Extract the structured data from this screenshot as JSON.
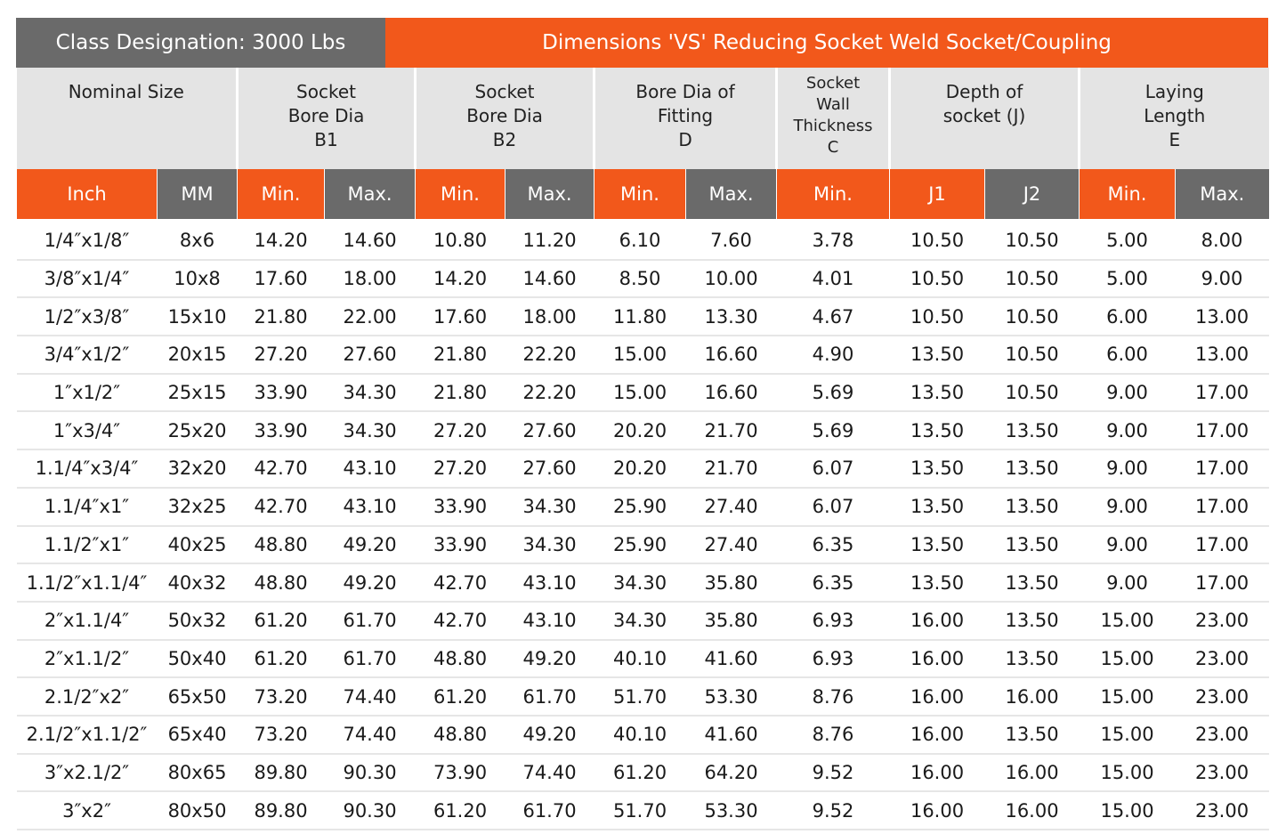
{
  "title": {
    "left": "Class Designation: 3000 Lbs",
    "right": "Dimensions 'VS' Reducing Socket Weld Socket/Coupling"
  },
  "header": {
    "groups": [
      {
        "lines": [
          "Nominal Size"
        ],
        "span": 2
      },
      {
        "lines": [
          "Socket",
          "Bore Dia",
          "B1"
        ],
        "span": 2
      },
      {
        "lines": [
          "Socket",
          "Bore Dia",
          "B2"
        ],
        "span": 2
      },
      {
        "lines": [
          "Bore Dia of",
          "Fitting",
          "D"
        ],
        "span": 2
      },
      {
        "lines": [
          "Socket",
          "Wall",
          "Thickness",
          "C"
        ],
        "span": 1
      },
      {
        "lines": [
          "Depth of",
          "socket (J)"
        ],
        "span": 2
      },
      {
        "lines": [
          "Laying",
          "Length",
          "E"
        ],
        "span": 2
      }
    ],
    "subheaders": [
      "Inch",
      "MM",
      "Min.",
      "Max.",
      "Min.",
      "Max.",
      "Min.",
      "Max.",
      "Min.",
      "J1",
      "J2",
      "Min.",
      "Max."
    ]
  },
  "table": {
    "rows": [
      [
        "1/4″x1/8″",
        "8x6",
        "14.20",
        "14.60",
        "10.80",
        "11.20",
        "6.10",
        "7.60",
        "3.78",
        "10.50",
        "10.50",
        "5.00",
        "8.00"
      ],
      [
        "3/8″x1/4″",
        "10x8",
        "17.60",
        "18.00",
        "14.20",
        "14.60",
        "8.50",
        "10.00",
        "4.01",
        "10.50",
        "10.50",
        "5.00",
        "9.00"
      ],
      [
        "1/2″x3/8″",
        "15x10",
        "21.80",
        "22.00",
        "17.60",
        "18.00",
        "11.80",
        "13.30",
        "4.67",
        "10.50",
        "10.50",
        "6.00",
        "13.00"
      ],
      [
        "3/4″x1/2″",
        "20x15",
        "27.20",
        "27.60",
        "21.80",
        "22.20",
        "15.00",
        "16.60",
        "4.90",
        "13.50",
        "10.50",
        "6.00",
        "13.00"
      ],
      [
        "1″x1/2″",
        "25x15",
        "33.90",
        "34.30",
        "21.80",
        "22.20",
        "15.00",
        "16.60",
        "5.69",
        "13.50",
        "10.50",
        "9.00",
        "17.00"
      ],
      [
        "1″x3/4″",
        "25x20",
        "33.90",
        "34.30",
        "27.20",
        "27.60",
        "20.20",
        "21.70",
        "5.69",
        "13.50",
        "13.50",
        "9.00",
        "17.00"
      ],
      [
        "1.1/4″x3/4″",
        "32x20",
        "42.70",
        "43.10",
        "27.20",
        "27.60",
        "20.20",
        "21.70",
        "6.07",
        "13.50",
        "13.50",
        "9.00",
        "17.00"
      ],
      [
        "1.1/4″x1″",
        "32x25",
        "42.70",
        "43.10",
        "33.90",
        "34.30",
        "25.90",
        "27.40",
        "6.07",
        "13.50",
        "13.50",
        "9.00",
        "17.00"
      ],
      [
        "1.1/2″x1″",
        "40x25",
        "48.80",
        "49.20",
        "33.90",
        "34.30",
        "25.90",
        "27.40",
        "6.35",
        "13.50",
        "13.50",
        "9.00",
        "17.00"
      ],
      [
        "1.1/2″x1.1/4″",
        "40x32",
        "48.80",
        "49.20",
        "42.70",
        "43.10",
        "34.30",
        "35.80",
        "6.35",
        "13.50",
        "13.50",
        "9.00",
        "17.00"
      ],
      [
        "2″x1.1/4″",
        "50x32",
        "61.20",
        "61.70",
        "42.70",
        "43.10",
        "34.30",
        "35.80",
        "6.93",
        "16.00",
        "13.50",
        "15.00",
        "23.00"
      ],
      [
        "2″x1.1/2″",
        "50x40",
        "61.20",
        "61.70",
        "48.80",
        "49.20",
        "40.10",
        "41.60",
        "6.93",
        "16.00",
        "13.50",
        "15.00",
        "23.00"
      ],
      [
        "2.1/2″x2″",
        "65x50",
        "73.20",
        "74.40",
        "61.20",
        "61.70",
        "51.70",
        "53.30",
        "8.76",
        "16.00",
        "16.00",
        "15.00",
        "23.00"
      ],
      [
        "2.1/2″x1.1/2″",
        "65x40",
        "73.20",
        "74.40",
        "48.80",
        "49.20",
        "40.10",
        "41.60",
        "8.76",
        "16.00",
        "13.50",
        "15.00",
        "23.00"
      ],
      [
        "3″x2.1/2″",
        "80x65",
        "89.80",
        "90.30",
        "73.90",
        "74.40",
        "61.20",
        "64.20",
        "9.52",
        "16.00",
        "16.00",
        "15.00",
        "23.00"
      ],
      [
        "3″x2″",
        "80x50",
        "89.80",
        "90.30",
        "61.20",
        "61.70",
        "51.70",
        "53.30",
        "9.52",
        "16.00",
        "16.00",
        "15.00",
        "23.00"
      ]
    ]
  }
}
